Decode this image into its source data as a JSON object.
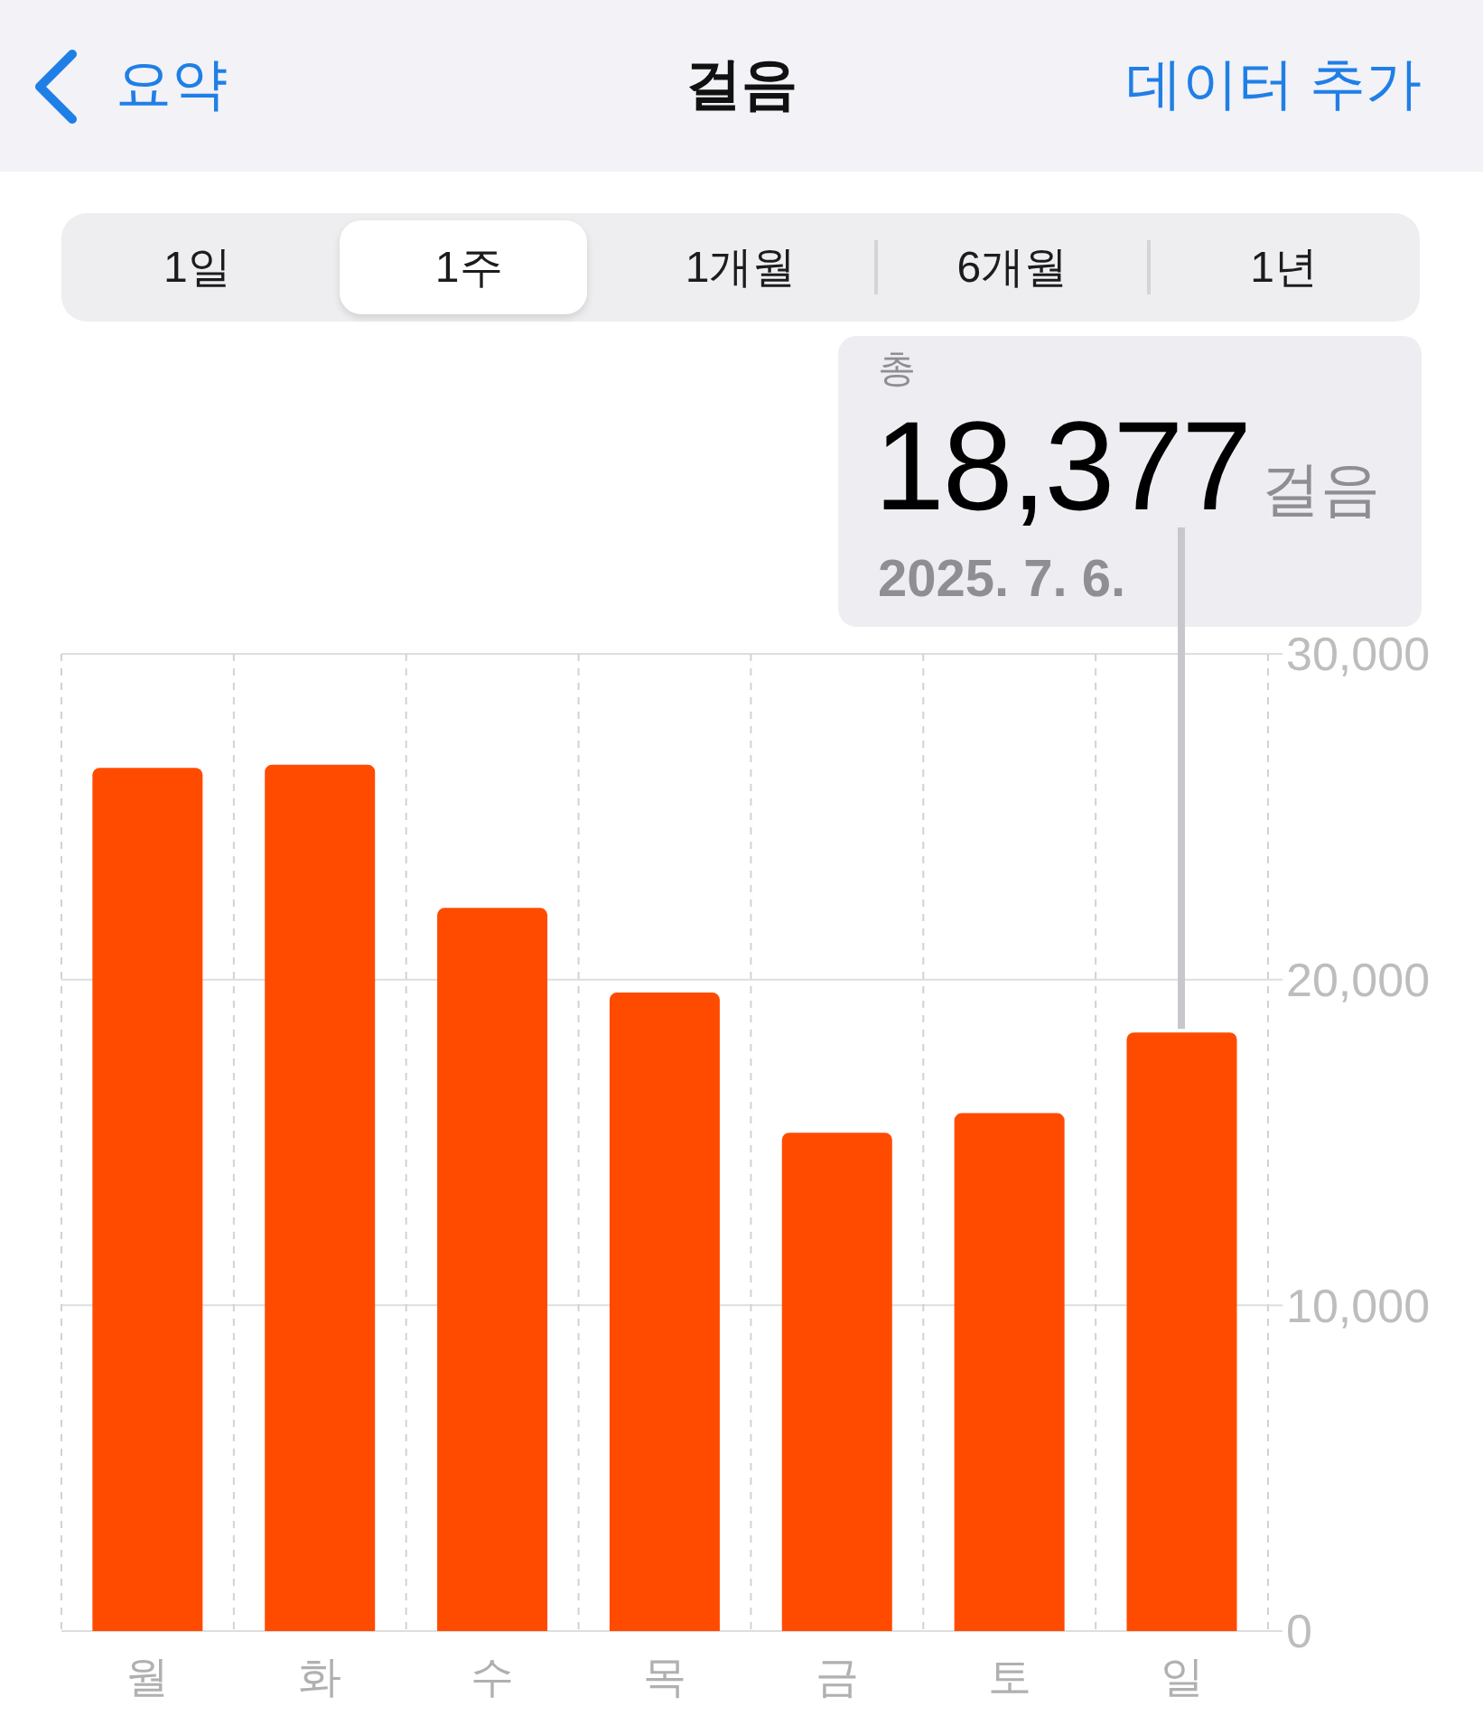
{
  "chart_data": {
    "type": "bar",
    "title": "걸음",
    "categories": [
      "월",
      "화",
      "수",
      "목",
      "금",
      "토",
      "일"
    ],
    "values": [
      26500,
      26600,
      22200,
      19600,
      15300,
      15900,
      18377
    ],
    "color": "#ff4b00",
    "ylim": [
      0,
      30000
    ],
    "yticks": [
      0,
      {
        "value": 10000,
        "label": "10,000"
      },
      {
        "value": 20000,
        "label": "20,000"
      },
      {
        "value": 30000,
        "label": "30,000"
      }
    ],
    "grid": true,
    "annotations": [
      "요약",
      "데이터 추가",
      "1일",
      "1주",
      "1개월",
      "6개월",
      "1년",
      "총",
      {
        "text": "18,377",
        "x": "일",
        "y": 18377
      },
      "걸음",
      "2025. 7. 6."
    ]
  }
}
